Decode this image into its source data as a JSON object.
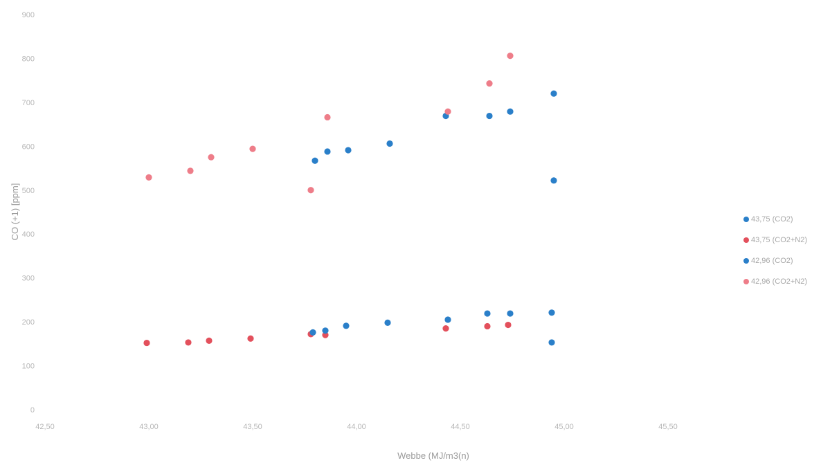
{
  "chart_data": {
    "type": "scatter",
    "title": "",
    "xlabel": "Webbe (MJ/m3(n)",
    "ylabel": "CO (+1) [ppm]",
    "xlim": [
      42.5,
      45.75
    ],
    "ylim": [
      0,
      900
    ],
    "x_ticks": [
      "42,50",
      "43,00",
      "43,50",
      "44,00",
      "44,50",
      "45,00",
      "45,50"
    ],
    "y_ticks": [
      "0",
      "100",
      "200",
      "300",
      "400",
      "500",
      "600",
      "700",
      "800",
      "900"
    ],
    "grid": false,
    "legend_position": "right",
    "series": [
      {
        "name": "43,75 (CO2)",
        "color": "#2a7fc9",
        "points": [
          [
            43.8,
            567
          ],
          [
            43.86,
            588
          ],
          [
            43.96,
            591
          ],
          [
            44.16,
            606
          ],
          [
            44.43,
            669
          ],
          [
            44.64,
            669
          ],
          [
            44.74,
            679
          ],
          [
            44.95,
            720
          ],
          [
            44.95,
            522
          ]
        ]
      },
      {
        "name": "43,75 (CO2+N2)",
        "color": "#e3505c",
        "points": [
          [
            42.99,
            152
          ],
          [
            43.19,
            153
          ],
          [
            43.29,
            157
          ],
          [
            43.49,
            162
          ],
          [
            43.78,
            172
          ],
          [
            43.85,
            170
          ],
          [
            44.43,
            185
          ],
          [
            44.63,
            190
          ],
          [
            44.73,
            193
          ]
        ]
      },
      {
        "name": "42,96 (CO2)",
        "color": "#2a7fc9",
        "points": [
          [
            43.79,
            176
          ],
          [
            43.85,
            180
          ],
          [
            43.95,
            191
          ],
          [
            44.15,
            198
          ],
          [
            44.44,
            205
          ],
          [
            44.63,
            219
          ],
          [
            44.74,
            219
          ],
          [
            44.94,
            221
          ],
          [
            44.94,
            153
          ]
        ]
      },
      {
        "name": "42,96 (CO2+N2)",
        "color": "#ee7d89",
        "points": [
          [
            43.0,
            529
          ],
          [
            43.2,
            544
          ],
          [
            43.3,
            575
          ],
          [
            43.5,
            594
          ],
          [
            43.78,
            500
          ],
          [
            43.86,
            666
          ],
          [
            44.44,
            679
          ],
          [
            44.64,
            743
          ],
          [
            44.74,
            806
          ]
        ]
      }
    ]
  }
}
